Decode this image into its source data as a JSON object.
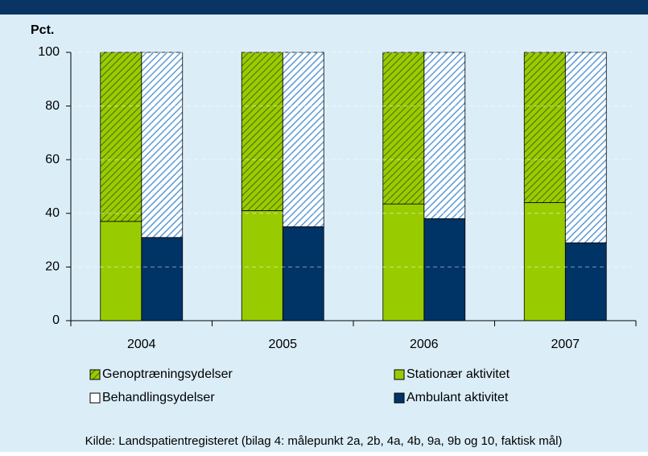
{
  "chart_data": {
    "type": "bar",
    "y_label": "Pct.",
    "source": "Kilde: Landspatientregisteret (bilag 4: målepunkt 2a, 2b, 4a, 4b, 9a, 9b og 10, faktisk mål)",
    "categories": [
      "2004",
      "2005",
      "2006",
      "2007"
    ],
    "series": [
      {
        "name": "Genoptræningsydelser",
        "color": "#99cc00",
        "hatch": true,
        "stack": 0,
        "values": [
          63,
          59,
          56.5,
          56
        ]
      },
      {
        "name": "Stationær aktivitet",
        "color": "#99cc00",
        "hatch": false,
        "stack": 0,
        "values": [
          37,
          41,
          43.5,
          44
        ]
      },
      {
        "name": "Behandlingsydelser",
        "color": "#5b9bd5",
        "hatch": true,
        "stack": 1,
        "values": [
          69,
          65,
          62,
          71
        ]
      },
      {
        "name": "Ambulant aktivitet",
        "color": "#003366",
        "hatch": false,
        "stack": 1,
        "values": [
          31,
          35,
          38,
          29
        ]
      }
    ],
    "ylim": [
      0,
      100
    ],
    "yticks": [
      0,
      20,
      40,
      60,
      80,
      100
    ],
    "grid": true
  }
}
